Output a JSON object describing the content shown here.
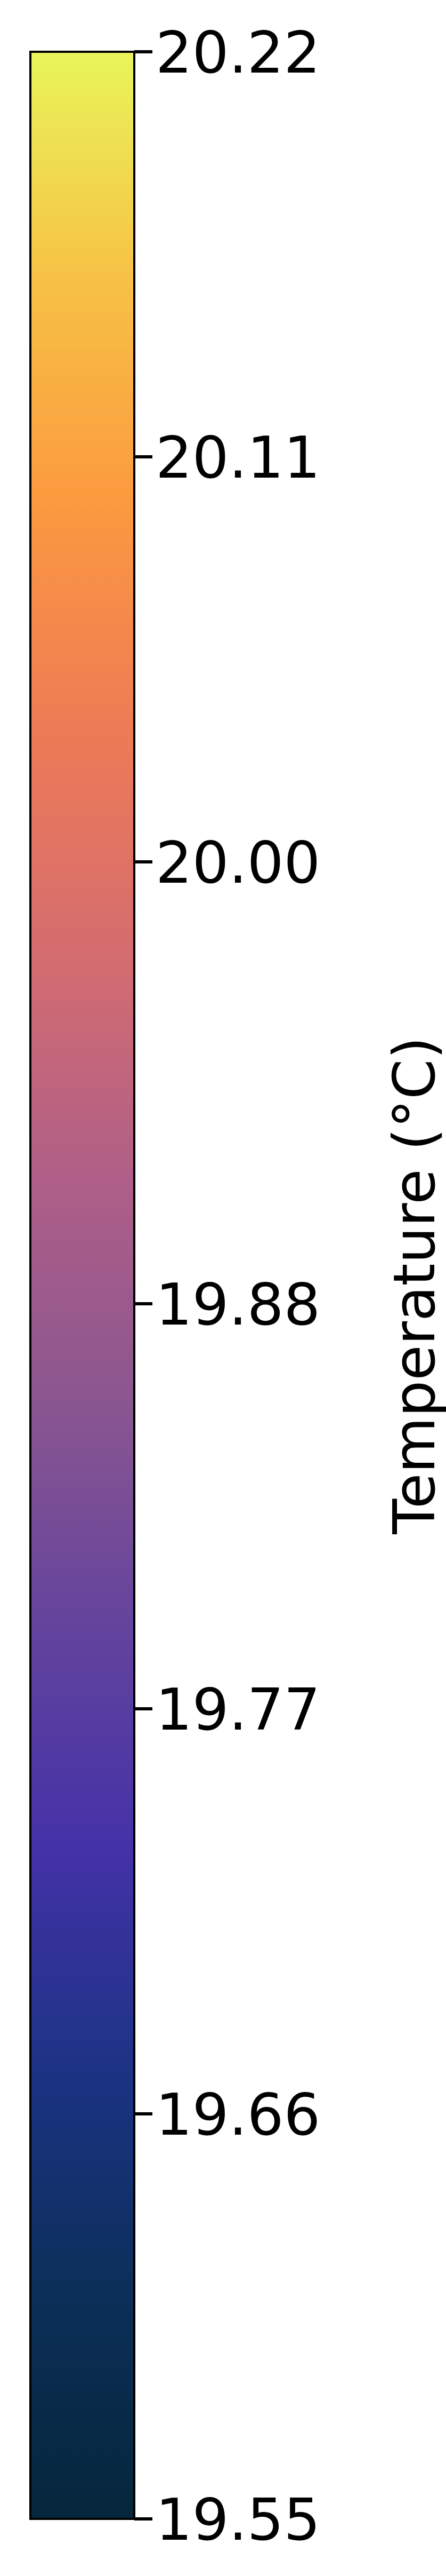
{
  "chart_data": {
    "type": "colorbar",
    "label": "Temperature (°C)",
    "range": [
      19.55,
      20.22
    ],
    "orientation": "vertical",
    "colormap": [
      "#05263b",
      "#0b2f58",
      "#1c3384",
      "#4432a8",
      "#64449d",
      "#8b5690",
      "#b05f87",
      "#d56d6f",
      "#ee7b55",
      "#fb9a3f",
      "#f7c245",
      "#e8f55a"
    ],
    "ticks": [
      {
        "value": 19.55,
        "label": "19.55"
      },
      {
        "value": 19.66,
        "label": "19.66"
      },
      {
        "value": 19.77,
        "label": "19.77"
      },
      {
        "value": 19.88,
        "label": "19.88"
      },
      {
        "value": 20.0,
        "label": "20.00"
      },
      {
        "value": 20.11,
        "label": "20.11"
      },
      {
        "value": 20.22,
        "label": "20.22"
      }
    ]
  }
}
